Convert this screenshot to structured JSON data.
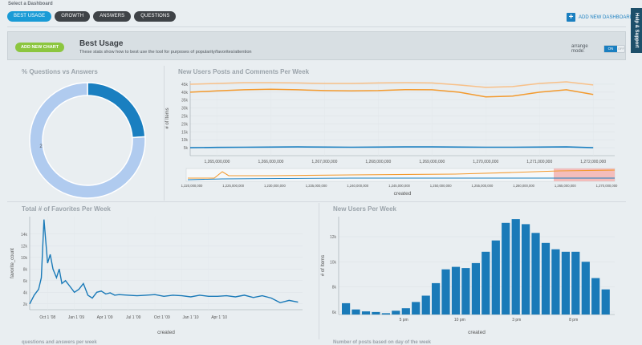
{
  "header": {
    "select_label": "Select a Dashboard",
    "tabs": [
      {
        "label": "BEST USAGE",
        "active": true
      },
      {
        "label": "GROWTH",
        "active": false
      },
      {
        "label": "ANSWERS",
        "active": false
      },
      {
        "label": "QUESTIONS",
        "active": false
      }
    ],
    "add_dashboard_label": "ADD NEW DASHBOARD",
    "help_label": "Help & Support"
  },
  "banner": {
    "add_chart_label": "ADD NEW CHART",
    "title": "Best Usage",
    "subtitle": "These stats show how to best use the tool for purposes of popularity/favorites/attention",
    "arrange_label": "arrange mode:",
    "toggle_on": "ON",
    "toggle_off": "OFF"
  },
  "colors": {
    "accent": "#1a9bd6",
    "dark_blue": "#1a7fc0",
    "green": "#8cc63f",
    "orange": "#f39a2e",
    "light_orange": "#f8c088",
    "donut_light": "#b0cbef",
    "bar_blue": "#1a7ab8"
  },
  "panels": {
    "questions_vs_answers": {
      "title": "% Questions vs Answers",
      "chart_data": {
        "type": "pie",
        "slices": [
          {
            "label": "",
            "value": 24
          },
          {
            "label": "2",
            "value": 76
          }
        ]
      }
    },
    "users_posts_comments": {
      "title": "New Users Posts and Comments Per Week",
      "chart_data": {
        "type": "line",
        "ylabel": "# of Items",
        "xlabel": "created",
        "y_ticks": [
          "45k",
          "40k",
          "35k",
          "30k",
          "25k",
          "20k",
          "15k",
          "10k",
          "5k"
        ],
        "ylim": [
          0,
          47000
        ],
        "x_ticks": [
          "1,265,000,000",
          "1,266,000,000",
          "1,267,000,000",
          "1,268,000,000",
          "1,269,000,000",
          "1,270,000,000",
          "1,271,000,000",
          "1,272,000,000"
        ],
        "overview_x_ticks": [
          "1,220,000,000",
          "1,225,000,000",
          "1,230,000,000",
          "1,235,000,000",
          "1,240,000,000",
          "1,245,000,000",
          "1,250,000,000",
          "1,255,000,000",
          "1,260,000,000",
          "1,265,000,000",
          "1,270,000,000"
        ],
        "x": [
          1264500000,
          1265000000,
          1265500000,
          1266000000,
          1266500000,
          1267000000,
          1267500000,
          1268000000,
          1268500000,
          1269000000,
          1269500000,
          1270000000,
          1270500000,
          1271000000,
          1271500000,
          1272000000
        ],
        "series": [
          {
            "values": [
              45000,
              45500,
              46000,
              46000,
              45800,
              45500,
              45500,
              45800,
              46000,
              45800,
              44500,
              43000,
              43500,
              45500,
              46500,
              44500
            ]
          },
          {
            "values": [
              40000,
              40800,
              41500,
              41800,
              41500,
              41000,
              40800,
              41000,
              41600,
              41500,
              40000,
              37000,
              37500,
              40000,
              41500,
              38500
            ]
          },
          {
            "values": [
              5000,
              5200,
              5300,
              5400,
              5500,
              5400,
              5300,
              5400,
              5500,
              5500,
              5400,
              5300,
              5300,
              5400,
              5500,
              5000
            ]
          }
        ]
      }
    },
    "favorites_per_week": {
      "title": "Total # of Favorites Per Week",
      "chart_data": {
        "type": "line",
        "ylabel": "favorite_count",
        "xlabel": "created",
        "y_ticks": [
          "14k",
          "12k",
          "10k",
          "8k",
          "6k",
          "4k",
          "2k"
        ],
        "ylim": [
          1000,
          17000
        ],
        "x_ticks": [
          "Oct 1 '08",
          "Jan 1 '09",
          "Apr 1 '09",
          "Jul 1 '09",
          "Oct 1 '09",
          "Jan 1 '10",
          "Apr 1 '10"
        ],
        "x_months": [
          0,
          0.5,
          1,
          1.3,
          1.6,
          2,
          2.3,
          2.6,
          3,
          3.3,
          3.6,
          4,
          4.5,
          5,
          5.5,
          6,
          6.5,
          7,
          7.5,
          8,
          8.5,
          9,
          9.5,
          10,
          11,
          12,
          13,
          14,
          15,
          16,
          17,
          18,
          19,
          20,
          21,
          22,
          23,
          24,
          25,
          26,
          27,
          28,
          29,
          30
        ],
        "values": [
          2000,
          3500,
          4500,
          6500,
          16500,
          9000,
          10500,
          8000,
          6500,
          8000,
          5500,
          6000,
          5000,
          4000,
          4500,
          5500,
          3500,
          3000,
          4000,
          4200,
          3700,
          3900,
          3500,
          3600,
          3500,
          3400,
          3500,
          3600,
          3300,
          3500,
          3400,
          3200,
          3500,
          3300,
          3300,
          3400,
          3200,
          3500,
          3100,
          3400,
          3000,
          2200,
          2600,
          2300
        ]
      }
    },
    "new_users_per_week": {
      "title": "New Users Per Week",
      "chart_data": {
        "type": "bar",
        "ylabel": "# of Items",
        "xlabel": "created",
        "y_ticks": [
          "12k",
          "10k",
          "8k",
          "6k"
        ],
        "ylim": [
          5800,
          13600
        ],
        "x_ticks": [
          "5 pm",
          "10 pm",
          "3 pm",
          "8 pm"
        ],
        "values": [
          6700,
          6200,
          6050,
          6000,
          5900,
          6100,
          6300,
          6800,
          7300,
          8300,
          9400,
          9600,
          9500,
          9900,
          10800,
          11700,
          13100,
          13400,
          13000,
          12300,
          11500,
          11000,
          10800,
          10800,
          10000,
          8700,
          7800
        ]
      }
    }
  },
  "footer": {
    "left_partial": "questions and answers per week",
    "right_partial": "Number of posts based on day of the week"
  }
}
